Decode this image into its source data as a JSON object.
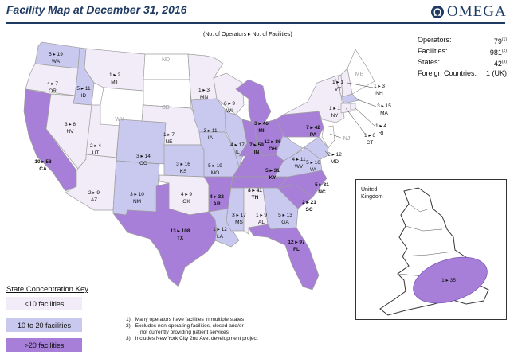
{
  "title": "Facility Map at December 31, 2016",
  "logo": {
    "text": "OMEGA",
    "icon": "omega-symbol-icon"
  },
  "legend_key": "(No. of Operators ▸ No. of Facilities)",
  "stats": [
    {
      "label": "Operators:",
      "value": "79",
      "note": "(1)"
    },
    {
      "label": "Facilities:",
      "value": "981",
      "note": "(2)"
    },
    {
      "label": "States:",
      "value": "42",
      "note": "(3)"
    },
    {
      "label": "Foreign Countries:",
      "value": "1 (UK)",
      "note": ""
    }
  ],
  "colors": {
    "low": "#f1ecf7",
    "mid": "#c9c8ee",
    "high": "#a77fd8",
    "none": "#ffffff",
    "border": "#9e9e9e"
  },
  "state_label_color": "#111111",
  "states": [
    {
      "abbr": "WA",
      "value": "5 ▸ 19",
      "tier": "mid"
    },
    {
      "abbr": "OR",
      "value": "4 ▸ 7",
      "tier": "low"
    },
    {
      "abbr": "CA",
      "value": "10 ▸ 58",
      "tier": "high"
    },
    {
      "abbr": "ID",
      "value": "5 ▸ 11",
      "tier": "mid"
    },
    {
      "abbr": "NV",
      "value": "3 ▸ 6",
      "tier": "low"
    },
    {
      "abbr": "UT",
      "value": "2 ▸ 4",
      "tier": "low"
    },
    {
      "abbr": "AZ",
      "value": "2 ▸ 9",
      "tier": "low"
    },
    {
      "abbr": "MT",
      "value": "1 ▸ 2",
      "tier": "low"
    },
    {
      "abbr": "WY",
      "value": "",
      "tier": "none"
    },
    {
      "abbr": "CO",
      "value": "3 ▸ 14",
      "tier": "mid"
    },
    {
      "abbr": "NM",
      "value": "3 ▸ 10",
      "tier": "mid"
    },
    {
      "abbr": "ND",
      "value": "",
      "tier": "none"
    },
    {
      "abbr": "SD",
      "value": "",
      "tier": "none"
    },
    {
      "abbr": "NE",
      "value": "1 ▸ 7",
      "tier": "low"
    },
    {
      "abbr": "KS",
      "value": "3 ▸ 16",
      "tier": "mid"
    },
    {
      "abbr": "OK",
      "value": "4 ▸ 9",
      "tier": "low"
    },
    {
      "abbr": "TX",
      "value": "13 ▸ 108",
      "tier": "high"
    },
    {
      "abbr": "MN",
      "value": "1 ▸ 3",
      "tier": "low"
    },
    {
      "abbr": "IA",
      "value": "3 ▸ 11",
      "tier": "mid"
    },
    {
      "abbr": "MO",
      "value": "5 ▸ 19",
      "tier": "mid"
    },
    {
      "abbr": "AR",
      "value": "4 ▸ 32",
      "tier": "high"
    },
    {
      "abbr": "LA",
      "value": "1 ▸ 12",
      "tier": "mid"
    },
    {
      "abbr": "WI",
      "value": "6 ▸ 9",
      "tier": "low"
    },
    {
      "abbr": "IL",
      "value": "4 ▸ 17",
      "tier": "mid"
    },
    {
      "abbr": "MI",
      "value": "3 ▸ 46",
      "tier": "high"
    },
    {
      "abbr": "IN",
      "value": "7 ▸ 59",
      "tier": "high"
    },
    {
      "abbr": "OH",
      "value": "12 ▸ 86",
      "tier": "high"
    },
    {
      "abbr": "KY",
      "value": "5 ▸ 31",
      "tier": "high"
    },
    {
      "abbr": "TN",
      "value": "8 ▸ 41",
      "tier": "high"
    },
    {
      "abbr": "MS",
      "value": "3 ▸ 17",
      "tier": "mid"
    },
    {
      "abbr": "AL",
      "value": "1 ▸ 9",
      "tier": "low"
    },
    {
      "abbr": "GA",
      "value": "5 ▸ 13",
      "tier": "mid"
    },
    {
      "abbr": "FL",
      "value": "12 ▸ 97",
      "tier": "high"
    },
    {
      "abbr": "SC",
      "value": "2 ▸ 21",
      "tier": "high"
    },
    {
      "abbr": "NC",
      "value": "5 ▸ 31",
      "tier": "high"
    },
    {
      "abbr": "VA",
      "value": "5 ▸ 16",
      "tier": "mid"
    },
    {
      "abbr": "WV",
      "value": "4 ▸ 11",
      "tier": "mid"
    },
    {
      "abbr": "PA",
      "value": "7 ▸ 42",
      "tier": "high"
    },
    {
      "abbr": "NY",
      "value": "1 ▸ 1",
      "tier": "low"
    },
    {
      "abbr": "VT",
      "value": "1 ▸ 1",
      "tier": "low"
    },
    {
      "abbr": "NH",
      "value": "1 ▸ 3",
      "tier": "low"
    },
    {
      "abbr": "ME",
      "value": "",
      "tier": "none"
    },
    {
      "abbr": "MA",
      "value": "3 ▸ 15",
      "tier": "mid"
    },
    {
      "abbr": "RI",
      "value": "1 ▸ 4",
      "tier": "low"
    },
    {
      "abbr": "CT",
      "value": "1 ▸ 6",
      "tier": "low"
    },
    {
      "abbr": "NJ",
      "value": "",
      "tier": "none"
    },
    {
      "abbr": "MD",
      "value": "2 ▸ 12",
      "tier": "mid"
    }
  ],
  "uk": {
    "label_line1": "United",
    "label_line2": "Kingdom",
    "value": "1 ▸ 35",
    "tier": "high"
  },
  "key": {
    "title": "State Concentration Key",
    "items": [
      {
        "label": "<10 facilities",
        "tier": "low"
      },
      {
        "label": "10 to 20 facilities",
        "tier": "mid"
      },
      {
        "label": ">20 facilities",
        "tier": "high"
      }
    ]
  },
  "notes": [
    {
      "num": "1)",
      "text": "Many operators have facilities in multiple states"
    },
    {
      "num": "2)",
      "text": "Excludes non-operating facilities, closed and/or"
    },
    {
      "num": "",
      "text": "not currently providing patient services"
    },
    {
      "num": "3)",
      "text": "Includes New York City 2nd Ave. development project"
    }
  ]
}
